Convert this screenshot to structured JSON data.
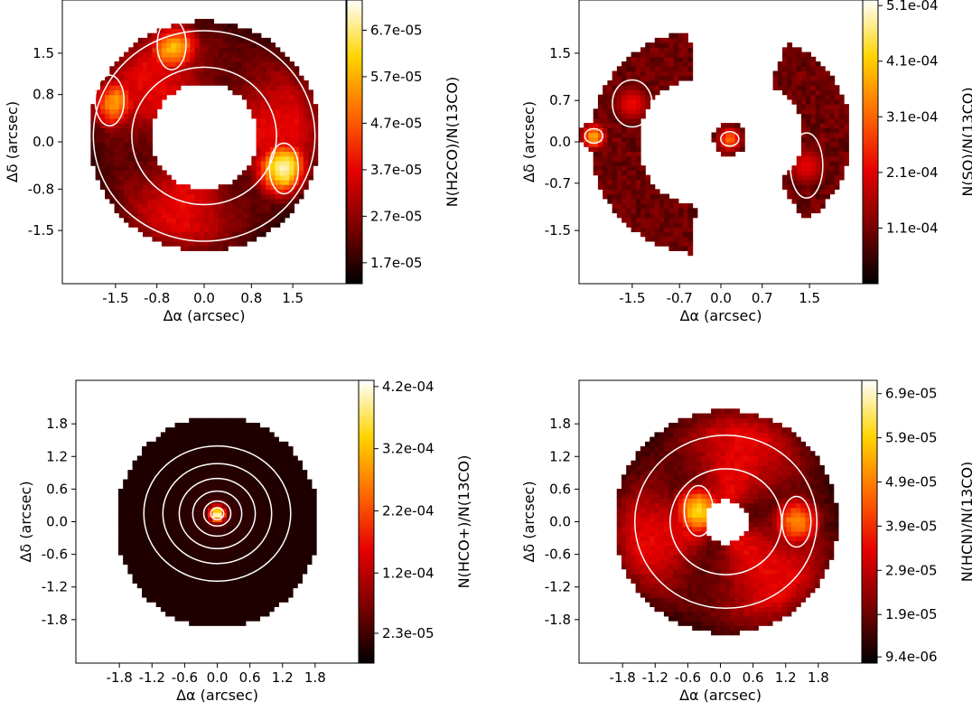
{
  "colors": {
    "colormap": "hot",
    "contour": "#ffffff",
    "stops": [
      "#000000",
      "#7a0000",
      "#e60000",
      "#ff6a00",
      "#ffd400",
      "#ffffff"
    ]
  },
  "chart_data": [
    {
      "type": "heatmap",
      "title": "",
      "xlabel": "Δα (arcsec)",
      "ylabel": "Δδ (arcsec)",
      "xlim": [
        -2.4,
        2.4
      ],
      "ylim": [
        -2.4,
        2.4
      ],
      "xticks": [
        -1.5,
        -0.8,
        0.0,
        0.8,
        1.5
      ],
      "xtick_labels": [
        "-1.5",
        "-0.8",
        "0.0",
        "0.8",
        "1.5"
      ],
      "yticks": [
        -1.5,
        -0.8,
        0.0,
        0.8,
        1.5
      ],
      "ytick_labels": [
        "-1.5",
        "-0.8",
        "0.0",
        "0.8",
        "1.5"
      ],
      "colorbar": {
        "label": "N(H2CO)/N(13CO)",
        "range": [
          1.25e-05,
          7.35e-05
        ],
        "ticks": [
          1.7e-05,
          2.7e-05,
          3.7e-05,
          4.7e-05,
          5.7e-05,
          6.7e-05
        ],
        "tick_labels": [
          "1.7e-05",
          "2.7e-05",
          "3.7e-05",
          "4.7e-05",
          "5.7e-05",
          "6.7e-05"
        ]
      },
      "structure": "ring",
      "ring": {
        "center": [
          0.0,
          0.1
        ],
        "r_inner": 0.9,
        "r_outer": 1.95
      },
      "bright_spots": [
        {
          "x": 1.35,
          "y": -0.45,
          "value": 7e-05
        },
        {
          "x": -0.55,
          "y": 1.65,
          "value": 6e-05
        },
        {
          "x": -1.6,
          "y": 0.7,
          "value": 5.8e-05
        }
      ],
      "contour_levels": [
        3.7e-05,
        5.7e-05
      ]
    },
    {
      "type": "heatmap",
      "title": "",
      "xlabel": "Δα (arcsec)",
      "ylabel": "Δδ (arcsec)",
      "xlim": [
        -2.4,
        2.4
      ],
      "ylim": [
        -2.4,
        2.4
      ],
      "xticks": [
        -1.5,
        -0.7,
        0.0,
        0.7,
        1.5
      ],
      "xtick_labels": [
        "-1.5",
        "-0.7",
        "0.0",
        "0.7",
        "1.5"
      ],
      "yticks": [
        -1.5,
        -0.7,
        0.0,
        0.7,
        1.5
      ],
      "ytick_labels": [
        "-1.5",
        "-0.7",
        "0.0",
        "0.7",
        "1.5"
      ],
      "colorbar": {
        "label": "N(SO)/N(13CO)",
        "range": [
          1e-05,
          0.00052
        ],
        "ticks": [
          0.00011,
          0.00021,
          0.00031,
          0.00041,
          0.00051
        ],
        "tick_labels": [
          "1.1e-04",
          "2.1e-04",
          "3.1e-04",
          "4.1e-04",
          "5.1e-04"
        ]
      },
      "structure": "clumps",
      "bright_spots": [
        {
          "x": -2.15,
          "y": 0.1,
          "value": 0.00038
        },
        {
          "x": 0.15,
          "y": 0.05,
          "value": 0.00032
        }
      ],
      "contour_levels": [
        0.00021
      ]
    },
    {
      "type": "heatmap",
      "title": "",
      "xlabel": "Δα (arcsec)",
      "ylabel": "Δδ (arcsec)",
      "xlim": [
        -2.6,
        2.6
      ],
      "ylim": [
        -2.6,
        2.6
      ],
      "xticks": [
        -1.8,
        -1.2,
        -0.6,
        0.0,
        0.6,
        1.2,
        1.8
      ],
      "xtick_labels": [
        "-1.8",
        "-1.2",
        "-0.6",
        "0.0",
        "0.6",
        "1.2",
        "1.8"
      ],
      "yticks": [
        -1.8,
        -1.2,
        -0.6,
        0.0,
        0.6,
        1.2,
        1.8
      ],
      "ytick_labels": [
        "-1.8",
        "-1.2",
        "-0.6",
        "0.0",
        "0.6",
        "1.2",
        "1.8"
      ],
      "colorbar": {
        "label": "N(HCO+)/N(13CO)",
        "range": [
          -2.5e-05,
          0.00043
        ],
        "ticks": [
          2.3e-05,
          0.00012,
          0.00022,
          0.00032,
          0.00042
        ],
        "tick_labels": [
          "2.3e-05",
          "1.2e-04",
          "2.2e-04",
          "3.2e-04",
          "4.2e-04"
        ]
      },
      "structure": "disk",
      "peak": {
        "x": 0.0,
        "y": 0.15,
        "value": 0.00042
      },
      "contour_levels": [
        1e-05,
        2e-05,
        4e-05,
        8e-05,
        0.00016,
        0.00032
      ]
    },
    {
      "type": "heatmap",
      "title": "",
      "xlabel": "Δα (arcsec)",
      "ylabel": "Δδ (arcsec)",
      "xlim": [
        -2.6,
        2.6
      ],
      "ylim": [
        -2.6,
        2.6
      ],
      "xticks": [
        -1.8,
        -1.2,
        -0.6,
        0.0,
        0.6,
        1.2,
        1.8
      ],
      "xtick_labels": [
        "-1.8",
        "-1.2",
        "-0.6",
        "0.0",
        "0.6",
        "1.2",
        "1.8"
      ],
      "yticks": [
        -1.8,
        -1.2,
        -0.6,
        0.0,
        0.6,
        1.2,
        1.8
      ],
      "ytick_labels": [
        "-1.8",
        "-1.2",
        "-0.6",
        "0.0",
        "0.6",
        "1.2",
        "1.8"
      ],
      "colorbar": {
        "label": "N(HCN)/N(13CO)",
        "range": [
          8e-06,
          7.2e-05
        ],
        "ticks": [
          9.4e-06,
          1.9e-05,
          2.9e-05,
          3.9e-05,
          4.9e-05,
          5.9e-05,
          6.9e-05
        ],
        "tick_labels": [
          "9.4e-06",
          "1.9e-05",
          "2.9e-05",
          "3.9e-05",
          "4.9e-05",
          "5.9e-05",
          "6.9e-05"
        ]
      },
      "structure": "ring",
      "ring": {
        "center": [
          0.1,
          0.0
        ],
        "r_inner": 0.4,
        "r_outer": 2.05
      },
      "bright_spots": [
        {
          "x": -0.4,
          "y": 0.2,
          "value": 6e-05
        },
        {
          "x": 1.4,
          "y": 0.0,
          "value": 5e-05
        }
      ],
      "contour_levels": [
        2.5e-05,
        4e-05
      ]
    }
  ]
}
